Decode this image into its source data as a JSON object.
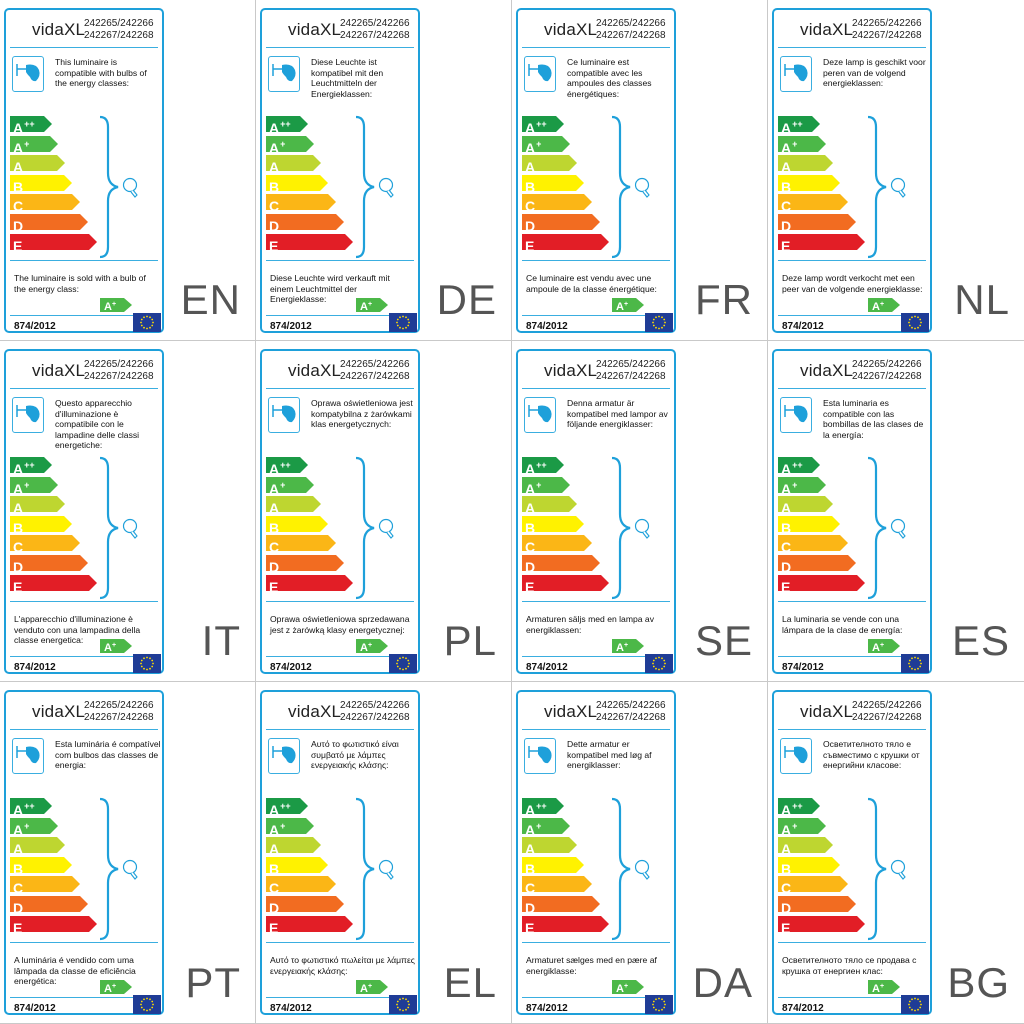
{
  "brand": "vidaXL",
  "codes": [
    "242265/242266",
    "242267/242268"
  ],
  "regulation": "874/2012",
  "energy_classes": [
    {
      "letter": "A",
      "sup": "++",
      "color": "#1b9a46"
    },
    {
      "letter": "A",
      "sup": "+",
      "color": "#4cb848"
    },
    {
      "letter": "A",
      "sup": "",
      "color": "#bed630"
    },
    {
      "letter": "B",
      "sup": "",
      "color": "#fff200"
    },
    {
      "letter": "C",
      "sup": "",
      "color": "#fbb616"
    },
    {
      "letter": "D",
      "sup": "",
      "color": "#f26c21"
    },
    {
      "letter": "E",
      "sup": "",
      "color": "#e21e26"
    }
  ],
  "sold_class": {
    "letter": "A",
    "sup": "+",
    "color": "#4cb848"
  },
  "accent_color": "#1ea0da",
  "eu_flag_color": "#1f3c96",
  "icons": [
    "lamp-icon",
    "bulb-icon",
    "eu-flag-icon"
  ],
  "panels": [
    {
      "lang": "EN",
      "compat_text": "This luminaire is compatible with bulbs of the energy classes:",
      "sold_text": "The luminaire is sold with a bulb of the energy class:"
    },
    {
      "lang": "DE",
      "compat_text": "Diese Leuchte ist kompatibel mit den Leuchtmitteln der Energieklassen:",
      "sold_text": "Diese Leuchte wird verkauft mit einem Leuchtmittel der Energieklasse:"
    },
    {
      "lang": "FR",
      "compat_text": "Ce luminaire est compatible avec les ampoules des classes énergétiques:",
      "sold_text": "Ce luminaire est vendu avec une ampoule de la classe énergétique:"
    },
    {
      "lang": "NL",
      "compat_text": "Deze lamp is geschikt voor peren van de volgend energieklassen:",
      "sold_text": "Deze lamp wordt verkocht met een peer van de volgende energieklasse:"
    },
    {
      "lang": "IT",
      "compat_text": "Questo apparecchio d'illuminazione è compatibile con le lampadine delle classi energetiche:",
      "sold_text": "L'apparecchio d'illuminazione è venduto con una lampadina della classe energetica:"
    },
    {
      "lang": "PL",
      "compat_text": "Oprawa oświetleniowa jest kompatybilna z żarówkami klas energetycznych:",
      "sold_text": "Oprawa oświetleniowa sprzedawana jest z żarówką klasy energetycznej:"
    },
    {
      "lang": "SE",
      "compat_text": "Denna armatur är kompatibel med lampor av följande energiklasser:",
      "sold_text": "Armaturen säljs med en lampa av energiklassen:"
    },
    {
      "lang": "ES",
      "compat_text": "Esta luminaria es compatible con las bombillas de las clases de la energía:",
      "sold_text": "La luminaria se vende con una lámpara de la clase de energía:"
    },
    {
      "lang": "PT",
      "compat_text": "Esta luminária é compatível com bulbos das classes de energia:",
      "sold_text": "A luminária é vendido com uma lâmpada da classe de eficiência energética:"
    },
    {
      "lang": "EL",
      "compat_text": "Αυτό το φωτιστικό είναι συμβατό με λάμπες ενεργειακής κλάσης:",
      "sold_text": "Αυτό το φωτιστικό πωλείται με λάμπες ενεργειακής κλάσης:"
    },
    {
      "lang": "DA",
      "compat_text": "Dette armatur er kompatibel med løg af energiklasser:",
      "sold_text": "Armaturet sælges med en pære af energiklasse:"
    },
    {
      "lang": "BG",
      "compat_text": "Осветителното тяло е съвместимо с крушки от енергийни класове:",
      "sold_text": "Осветителното тяло се продава с крушка от енергиен клас:"
    }
  ]
}
